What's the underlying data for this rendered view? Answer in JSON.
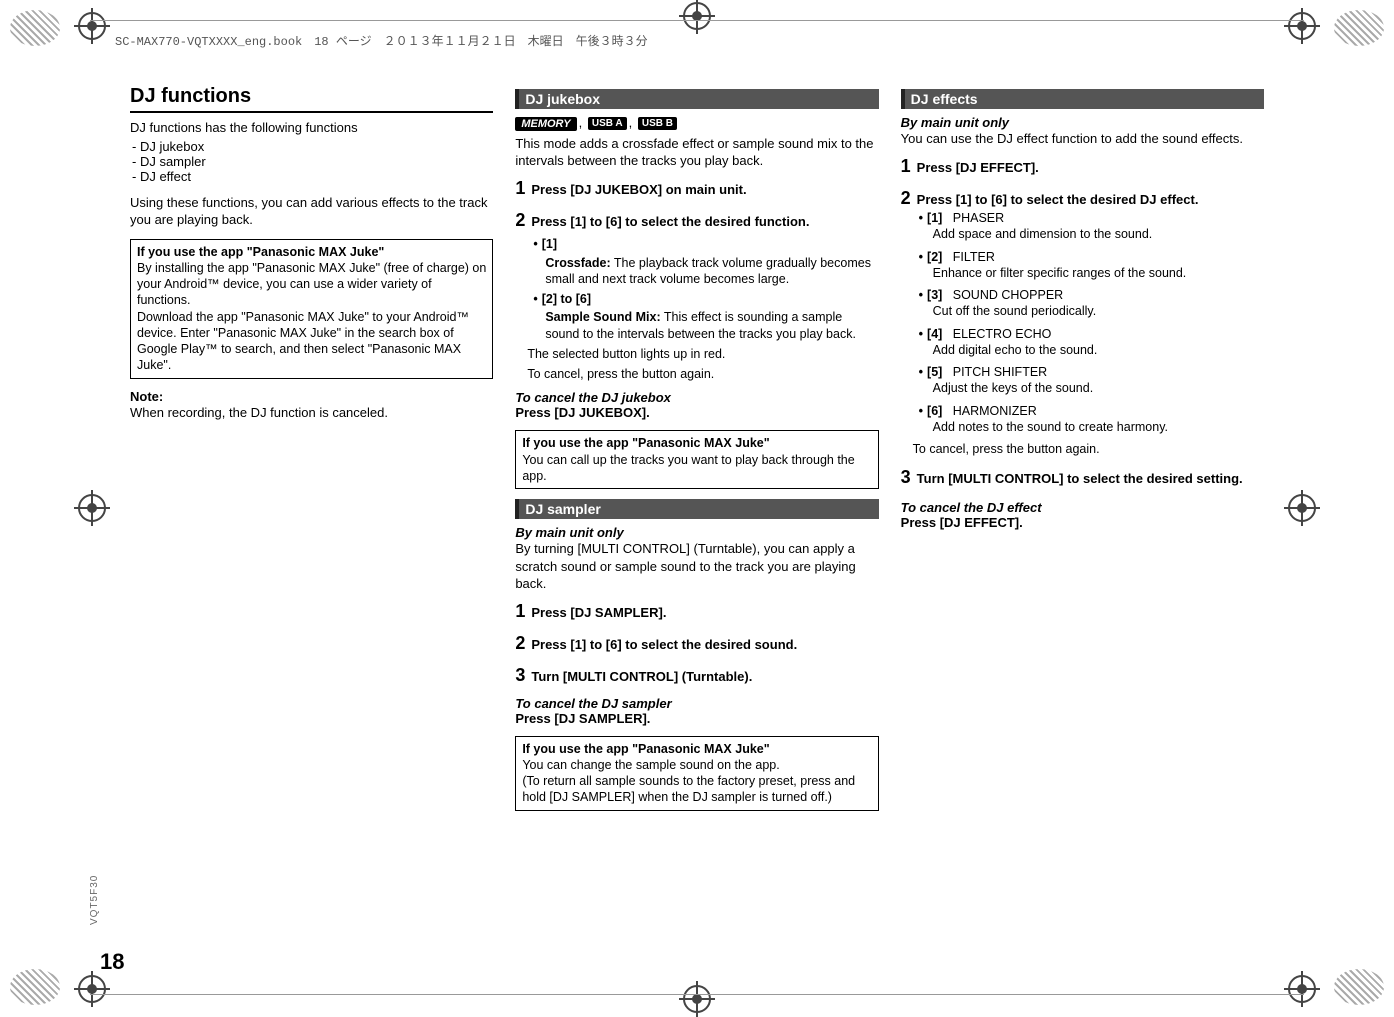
{
  "header": {
    "book_info": "SC-MAX770-VQTXXXX_eng.book　18 ページ　２０１３年１１月２１日　木曜日　午後３時３分"
  },
  "page_number": "18",
  "side_code": "VQT5F30",
  "col1": {
    "heading": "DJ functions",
    "intro": "DJ functions has the following functions",
    "list": [
      "-  DJ jukebox",
      "-  DJ sampler",
      "-  DJ effect"
    ],
    "para": "Using these functions, you can add various effects to the track you are playing back.",
    "box_head": "If you use the app \"Panasonic MAX Juke\"",
    "box_body": "By installing the app \"Panasonic MAX Juke\" (free of charge) on your Android™ device, you can use a wider variety of functions.\nDownload the app \"Panasonic MAX Juke\" to your Android™ device. Enter \"Panasonic MAX Juke\" in the search box of Google Play™ to search, and then select \"Panasonic MAX Juke\".",
    "note_head": "Note:",
    "note_body": "When recording, the DJ function is canceled."
  },
  "col2": {
    "sec1": "DJ jukebox",
    "badge1": "MEMORY",
    "badge2": "USB A",
    "badge3": "USB B",
    "intro": "This mode adds a crossfade effect or sample sound mix to the intervals between the tracks you play back.",
    "step1": "Press [DJ JUKEBOX] on main unit.",
    "step2": "Press [1] to [6] to select the desired function.",
    "opt1_label": "[1]",
    "opt1_head": "Crossfade:",
    "opt1_body": " The playback track volume gradually becomes small and next track volume becomes large.",
    "opt2_label": "[2] to [6]",
    "opt2_head": "Sample Sound Mix:",
    "opt2_body": " This effect is sounding a sample sound to the intervals between the tracks you play back.",
    "after1": "The selected button lights up in red.",
    "after2": "To cancel, press the button again.",
    "cancel_head": "To cancel the DJ jukebox",
    "cancel_body": "Press [DJ JUKEBOX].",
    "box1_head": "If you use the app \"Panasonic MAX Juke\"",
    "box1_body": "You can call up the tracks you want to play back through the app.",
    "sec2": "DJ sampler",
    "sampler_by": "By main unit only",
    "sampler_intro": "By turning [MULTI CONTROL] (Turntable), you can apply a scratch sound or sample sound to the track you are playing back.",
    "sstep1": "Press [DJ SAMPLER].",
    "sstep2": "Press [1] to [6] to select the desired sound.",
    "sstep3": "Turn [MULTI CONTROL] (Turntable).",
    "scancel_head": "To cancel the DJ sampler",
    "scancel_body": "Press [DJ SAMPLER].",
    "box2_head": "If you use the app \"Panasonic MAX Juke\"",
    "box2_body": "You can change the sample sound on the app.\n(To return all sample sounds to the factory preset, press and hold [DJ SAMPLER] when the DJ sampler is turned off.)"
  },
  "col3": {
    "sec": "DJ effects",
    "by": "By main unit only",
    "intro": "You can use the DJ effect function to add the sound effects.",
    "step1": "Press [DJ EFFECT].",
    "step2": "Press [1] to [6] to select the desired DJ effect.",
    "fx": [
      {
        "n": "[1]",
        "name": "PHASER",
        "d": "Add space and dimension to the sound."
      },
      {
        "n": "[2]",
        "name": "FILTER",
        "d": "Enhance or filter specific ranges of the sound."
      },
      {
        "n": "[3]",
        "name": "SOUND CHOPPER",
        "d": "Cut off the sound periodically."
      },
      {
        "n": "[4]",
        "name": "ELECTRO ECHO",
        "d": "Add digital echo to the sound."
      },
      {
        "n": "[5]",
        "name": "PITCH SHIFTER",
        "d": "Adjust the keys of the sound."
      },
      {
        "n": "[6]",
        "name": "HARMONIZER",
        "d": "Add notes to the sound to create harmony."
      }
    ],
    "after": "To cancel, press the button again.",
    "step3": "Turn [MULTI CONTROL] to select the desired setting.",
    "cancel_head": "To cancel the DJ effect",
    "cancel_body": "Press [DJ EFFECT]."
  }
}
